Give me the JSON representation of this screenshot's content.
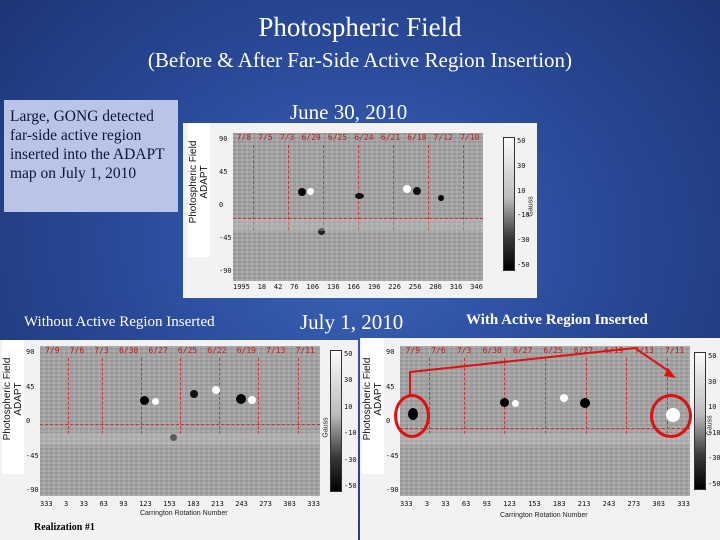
{
  "slide": {
    "title": "Photospheric Field",
    "subtitle": "(Before & After Far-Side Active Region Insertion)",
    "note": "Large, GONG detected far-side active region inserted into the ADAPT map on July 1, 2010",
    "date_top": "June 30, 2010",
    "date_bottom": "July 1, 2010",
    "label_left": "Without Active Region Inserted",
    "label_right": "With Active Region Inserted",
    "realization": "Realization #1"
  },
  "panel_label": {
    "line1": "Photospheric Field",
    "line2": "ADAPT"
  },
  "panel_top": {
    "dates": [
      "7/8",
      "7/5",
      "7/3",
      "6/29",
      "6/25",
      "6/24",
      "6/21",
      "6/18",
      "7/12",
      "7/10"
    ],
    "xticks": [
      "1995",
      "18",
      "42",
      "76",
      "106",
      "136",
      "166",
      "196",
      "226",
      "256",
      "286",
      "316",
      "346"
    ],
    "yticks": [
      "90",
      "45",
      "0",
      "-45",
      "-90"
    ],
    "cticks": [
      "50",
      "30",
      "10",
      "-10",
      "-30",
      "-50"
    ],
    "cbar_title": "Gauss"
  },
  "panel_left": {
    "dates": [
      "7/9",
      "7/6",
      "7/3",
      "6/30",
      "6/27",
      "6/25",
      "6/22",
      "6/19",
      "7/13",
      "7/11"
    ],
    "xticks": [
      "333",
      "3",
      "33",
      "63",
      "93",
      "123",
      "153",
      "183",
      "213",
      "243",
      "273",
      "303",
      "333"
    ],
    "yticks": [
      "90",
      "45",
      "0",
      "-45",
      "-90"
    ],
    "cticks": [
      "50",
      "30",
      "10",
      "-10",
      "-30",
      "-50"
    ],
    "cbar_title": "Gauss",
    "xtitle": "Carrington Rotation Number"
  },
  "panel_right": {
    "dates": [
      "7/9",
      "7/6",
      "7/3",
      "6/30",
      "6/27",
      "6/25",
      "6/22",
      "6/19",
      "7/13",
      "7/11"
    ],
    "xticks": [
      "333",
      "3",
      "33",
      "63",
      "93",
      "123",
      "153",
      "183",
      "213",
      "243",
      "273",
      "303",
      "333"
    ],
    "yticks": [
      "90",
      "45",
      "0",
      "-45",
      "-90"
    ],
    "cticks": [
      "50",
      "30",
      "10",
      "-10",
      "-30",
      "-50"
    ],
    "cbar_title": "Gauss",
    "xtitle": "Carrington Rotation Number"
  },
  "colors": {
    "accent_red": "#e01010",
    "background": "#2a4b9a"
  }
}
